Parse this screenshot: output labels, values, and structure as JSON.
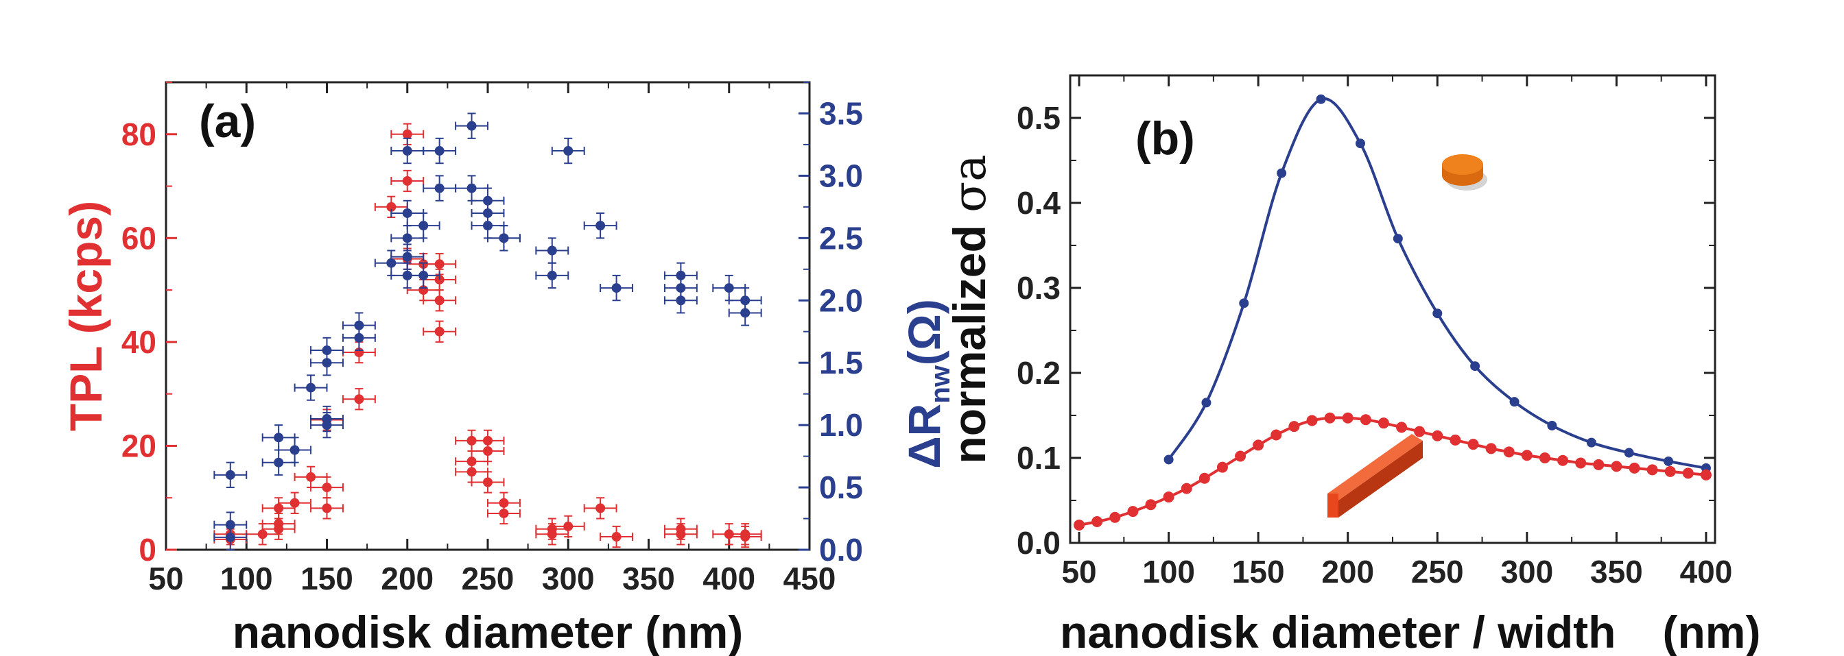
{
  "colors": {
    "red": "#e03032",
    "blue": "#2b3f8f",
    "axis": "#222222",
    "disk": "#f0821e",
    "bar": "#e8471e"
  },
  "chart_data": [
    {
      "panel": "(a)",
      "type": "scatter",
      "xlabel": "nanodisk diameter (nm)",
      "xlim": [
        50,
        450
      ],
      "xticks": [
        "50",
        "100",
        "150",
        "200",
        "250",
        "300",
        "350",
        "400",
        "450"
      ],
      "ylabel_left": "TPL (kcps)",
      "ylim_left": [
        0,
        90
      ],
      "yticks_left": [
        "0",
        "20",
        "40",
        "60",
        "80"
      ],
      "ylabel_right_main": "ΔR",
      "ylabel_right_sub": "nw",
      "ylabel_right_unit": "(Ω)",
      "ylim_right": [
        0,
        3.75
      ],
      "yticks_right": [
        "0.0",
        "0.5",
        "1.0",
        "1.5",
        "2.0",
        "2.5",
        "3.0",
        "3.5"
      ],
      "xerr": 10,
      "series": [
        {
          "name": "TPL",
          "axis": "left",
          "color": "#e03032",
          "yerr": 2,
          "x": [
            90,
            90,
            110,
            120,
            120,
            120,
            130,
            140,
            150,
            150,
            150,
            170,
            170,
            190,
            200,
            200,
            200,
            210,
            210,
            220,
            220,
            220,
            220,
            240,
            240,
            240,
            250,
            250,
            250,
            260,
            260,
            290,
            290,
            300,
            320,
            330,
            370,
            370,
            400,
            410,
            410
          ],
          "y": [
            2,
            3,
            3,
            4,
            5,
            8,
            9,
            14,
            12,
            8,
            25,
            38,
            29,
            66,
            80,
            71,
            56,
            55,
            50,
            55,
            52,
            48,
            42,
            17,
            15,
            21,
            21,
            19,
            13,
            9,
            7,
            3,
            4,
            4.5,
            8,
            2.5,
            3,
            4,
            3,
            2.5,
            3
          ]
        },
        {
          "name": "ΔRnw",
          "axis": "right",
          "color": "#2b3f8f",
          "yerr": 0.1,
          "x": [
            90,
            90,
            90,
            120,
            120,
            130,
            140,
            150,
            150,
            150,
            150,
            170,
            170,
            190,
            200,
            200,
            200,
            200,
            200,
            210,
            210,
            220,
            220,
            240,
            240,
            250,
            250,
            250,
            260,
            260,
            290,
            290,
            300,
            320,
            330,
            370,
            370,
            370,
            400,
            410,
            410
          ],
          "y": [
            0.6,
            0.2,
            0.1,
            0.9,
            0.7,
            0.8,
            1.3,
            1.6,
            1.5,
            1.05,
            1.0,
            1.8,
            1.7,
            2.3,
            3.2,
            2.7,
            2.5,
            2.35,
            2.2,
            2.6,
            2.2,
            3.2,
            2.9,
            3.4,
            2.9,
            2.8,
            2.7,
            2.6,
            2.5,
            2.5,
            2.4,
            2.2,
            3.2,
            2.6,
            2.1,
            2.2,
            2.1,
            2.0,
            2.1,
            2.0,
            1.9
          ]
        }
      ]
    },
    {
      "panel": "(b)",
      "type": "line",
      "xlabel_left": "nanodisk diameter / width",
      "xlabel_right": "(nm)",
      "xlim": [
        45,
        405
      ],
      "xticks": [
        "50",
        "100",
        "150",
        "200",
        "250",
        "300",
        "350",
        "400"
      ],
      "ylabel": "normalized σa",
      "ylabel_main": "normalized ",
      "ylabel_symbol": "σa",
      "ylim": [
        0,
        0.55
      ],
      "yticks": [
        "0.0",
        "0.1",
        "0.2",
        "0.3",
        "0.4",
        "0.5"
      ],
      "series": [
        {
          "name": "nanodisk",
          "color": "#2b3f8f",
          "x": [
            100,
            121,
            142,
            163,
            185,
            207,
            228,
            250,
            271,
            293,
            314,
            336,
            357,
            379,
            400
          ],
          "y": [
            0.098,
            0.165,
            0.282,
            0.435,
            0.522,
            0.47,
            0.358,
            0.27,
            0.208,
            0.166,
            0.138,
            0.118,
            0.106,
            0.096,
            0.088
          ]
        },
        {
          "name": "nanowire",
          "color": "#e03032",
          "x": [
            50,
            60,
            70,
            80,
            90,
            100,
            110,
            120,
            130,
            140,
            150,
            160,
            170,
            180,
            190,
            200,
            210,
            220,
            230,
            240,
            250,
            260,
            270,
            280,
            290,
            300,
            310,
            320,
            330,
            340,
            350,
            360,
            370,
            380,
            390,
            400
          ],
          "y": [
            0.021,
            0.025,
            0.03,
            0.037,
            0.045,
            0.054,
            0.064,
            0.076,
            0.089,
            0.102,
            0.115,
            0.127,
            0.137,
            0.144,
            0.147,
            0.147,
            0.145,
            0.141,
            0.136,
            0.131,
            0.126,
            0.121,
            0.116,
            0.111,
            0.107,
            0.103,
            0.1,
            0.097,
            0.094,
            0.092,
            0.09,
            0.088,
            0.086,
            0.084,
            0.082,
            0.08
          ]
        }
      ]
    }
  ]
}
